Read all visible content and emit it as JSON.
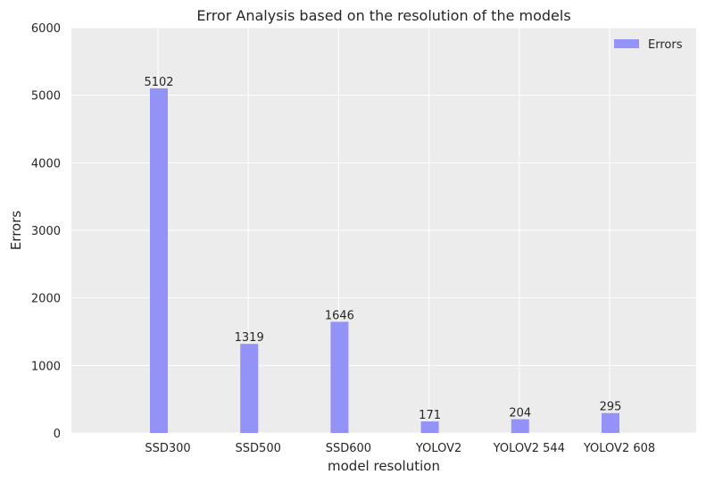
{
  "chart_data": {
    "type": "bar",
    "title": "Error Analysis based on the resolution of the models",
    "xlabel": "model resolution",
    "ylabel": "Errors",
    "categories": [
      "SSD300",
      "SSD500",
      "SSD600",
      "YOLOV2",
      "YOLOV2 544",
      "YOLOV2 608"
    ],
    "series": [
      {
        "name": "Errors",
        "values": [
          5102,
          1319,
          1646,
          171,
          204,
          295
        ],
        "color": "#9393f7"
      }
    ],
    "ylim": [
      0,
      6000
    ],
    "yticks": [
      0,
      1000,
      2000,
      3000,
      4000,
      5000,
      6000
    ],
    "grid": true,
    "legend": "top-right",
    "background": "#ececec",
    "grid_color": "#ffffff"
  }
}
